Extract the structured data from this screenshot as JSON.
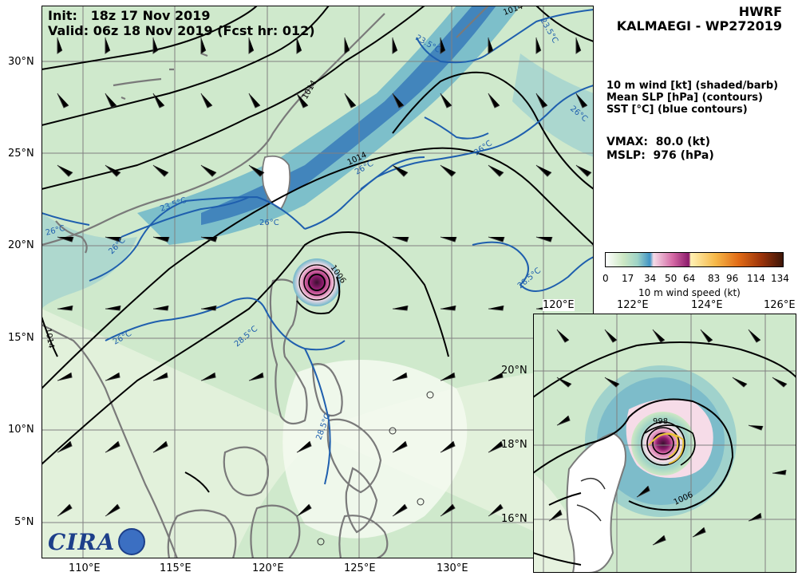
{
  "header": {
    "init_label": "Init:",
    "init_value": "18z 17 Nov 2019",
    "valid_label": "Valid:",
    "valid_value": "06z 18 Nov 2019 (Fcst hr: 012)",
    "model": "HWRF",
    "storm": "KALMAEGI - WP272019"
  },
  "legend": {
    "line1": "10 m wind [kt] (shaded/barb)",
    "line2": "Mean SLP [hPa] (contours)",
    "line3": "SST [°C] (blue contours)"
  },
  "stats": {
    "vmax_label": "VMAX:",
    "vmax_value": "80.0 (kt)",
    "mslp_label": "MSLP:",
    "mslp_value": "976 (hPa)"
  },
  "colorbar": {
    "ticks": [
      "0",
      "17",
      "34",
      "50",
      "64",
      "83",
      "96",
      "114",
      "134"
    ],
    "label": "10 m wind speed (kt)",
    "colors": [
      "#ffffff",
      "#cde8c4",
      "#6fb7c9",
      "#2a6cb6",
      "#f6dce8",
      "#d468a4",
      "#8b1a6b",
      "#fff2b4",
      "#f6b848",
      "#e16b16",
      "#9b330a",
      "#3d1608"
    ]
  },
  "main_axes": {
    "lat_labels": [
      "30°N",
      "25°N",
      "20°N",
      "15°N",
      "10°N",
      "5°N"
    ],
    "lon_labels": [
      "110°E",
      "115°E",
      "120°E",
      "125°E",
      "130°E"
    ]
  },
  "inset_axes": {
    "lon_labels": [
      "120°E",
      "122°E",
      "124°E",
      "126°E"
    ],
    "lat_labels": [
      "20°N",
      "18°N",
      "16°N"
    ]
  },
  "contour_labels": {
    "slp": [
      "1014",
      "1014",
      "1014",
      "1014",
      "1006",
      "1006",
      "998"
    ],
    "sst": [
      "23.5°C",
      "23.5°C",
      "23.5°C",
      "26°C",
      "26°C",
      "26°C",
      "26°C",
      "26°C",
      "26°C",
      "26°C",
      "28.5°C",
      "28.5°C",
      "28.5°C"
    ]
  },
  "logo": {
    "text": "CIRA"
  }
}
